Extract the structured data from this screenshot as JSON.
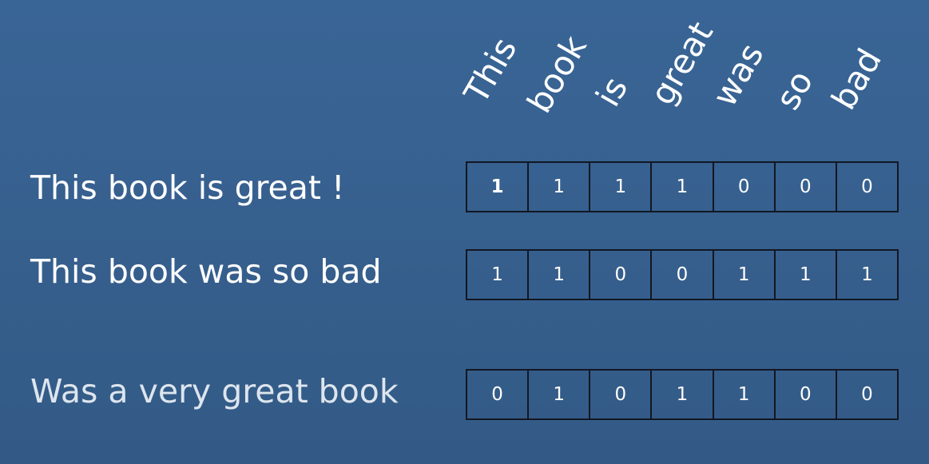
{
  "vocabulary": [
    "This",
    "book",
    "is",
    "great",
    "was",
    "so",
    "bad"
  ],
  "rows": [
    {
      "sentence": "This book is great !",
      "vector": [
        "1",
        "1",
        "1",
        "1",
        "0",
        "0",
        "0"
      ]
    },
    {
      "sentence": "This book was so bad",
      "vector": [
        "1",
        "1",
        "0",
        "0",
        "1",
        "1",
        "1"
      ]
    },
    {
      "sentence": "Was a very great book",
      "vector": [
        "0",
        "1",
        "0",
        "1",
        "1",
        "0",
        "0"
      ]
    }
  ]
}
